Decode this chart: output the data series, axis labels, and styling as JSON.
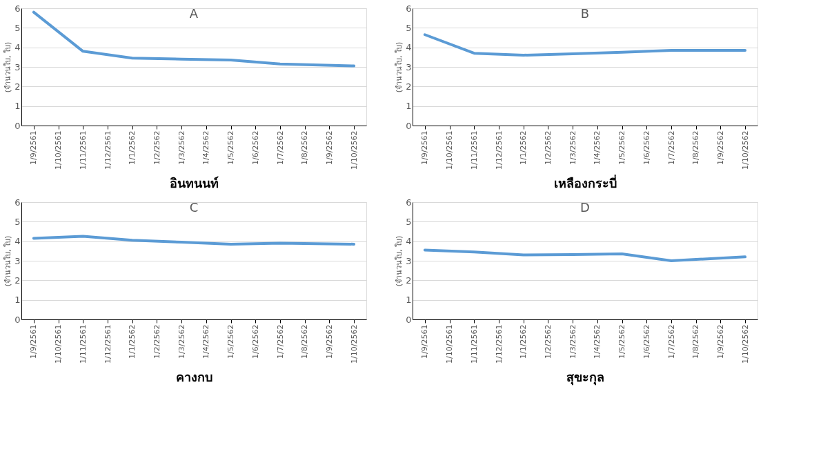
{
  "chart_data": [
    {
      "type": "line",
      "title": "A",
      "ylabel": "(จำนวนใบ, ใบ)",
      "xlabel": "อินทนนท์",
      "categories": [
        "1/9/2561",
        "1/10/2561",
        "1/11/2561",
        "1/12/2561",
        "1/1/2562",
        "1/2/2562",
        "1/3/2562",
        "1/4/2562",
        "1/5/2562",
        "1/6/2562",
        "1/7/2562",
        "1/8/2562",
        "1/9/2562",
        "1/10/2562"
      ],
      "series": [
        {
          "color": "#5b9bd5",
          "values": [
            5.8,
            null,
            3.8,
            null,
            3.45,
            null,
            3.4,
            null,
            3.35,
            null,
            3.15,
            null,
            null,
            3.05
          ]
        }
      ],
      "ylim": [
        0,
        6
      ],
      "yticks": [
        0,
        1,
        2,
        3,
        4,
        5,
        6
      ],
      "grid": "y",
      "marker": "none",
      "line_style": "solid"
    },
    {
      "type": "line",
      "title": "B",
      "ylabel": "(จำนวนใบ, ใบ)",
      "xlabel": "เหลืองกระบี่",
      "categories": [
        "1/9/2561",
        "1/10/2561",
        "1/11/2561",
        "1/12/2561",
        "1/1/2562",
        "1/2/2562",
        "1/3/2562",
        "1/4/2562",
        "1/5/2562",
        "1/6/2562",
        "1/7/2562",
        "1/8/2562",
        "1/9/2562",
        "1/10/2562"
      ],
      "series": [
        {
          "color": "#5b9bd5",
          "values": [
            4.65,
            null,
            3.7,
            null,
            3.6,
            null,
            3.67,
            null,
            3.75,
            null,
            3.85,
            null,
            null,
            3.85
          ]
        }
      ],
      "ylim": [
        0,
        6
      ],
      "yticks": [
        0,
        1,
        2,
        3,
        4,
        5,
        6
      ],
      "grid": "y",
      "marker": "none",
      "line_style": "solid"
    },
    {
      "type": "line",
      "title": "C",
      "ylabel": "(จำนวนใบ, ใบ)",
      "xlabel": "คางกบ",
      "categories": [
        "1/9/2561",
        "1/10/2561",
        "1/11/2561",
        "1/12/2561",
        "1/1/2562",
        "1/2/2562",
        "1/3/2562",
        "1/4/2562",
        "1/5/2562",
        "1/6/2562",
        "1/7/2562",
        "1/8/2562",
        "1/9/2562",
        "1/10/2562"
      ],
      "series": [
        {
          "color": "#5b9bd5",
          "values": [
            4.15,
            null,
            4.25,
            null,
            4.05,
            null,
            3.95,
            null,
            3.85,
            null,
            3.9,
            null,
            null,
            3.85
          ]
        }
      ],
      "ylim": [
        0,
        6
      ],
      "yticks": [
        0,
        1,
        2,
        3,
        4,
        5,
        6
      ],
      "grid": "y",
      "marker": "none",
      "line_style": "solid"
    },
    {
      "type": "line",
      "title": "D",
      "ylabel": "(จำนวนใบ, ใบ)",
      "xlabel": "สุขะกุล",
      "categories": [
        "1/9/2561",
        "1/10/2561",
        "1/11/2561",
        "1/12/2561",
        "1/1/2562",
        "1/2/2562",
        "1/3/2562",
        "1/4/2562",
        "1/5/2562",
        "1/6/2562",
        "1/7/2562",
        "1/8/2562",
        "1/9/2562",
        "1/10/2562"
      ],
      "series": [
        {
          "color": "#5b9bd5",
          "values": [
            3.55,
            null,
            3.45,
            null,
            3.3,
            null,
            3.32,
            null,
            3.35,
            null,
            3.0,
            null,
            null,
            3.2
          ]
        }
      ],
      "ylim": [
        0,
        6
      ],
      "yticks": [
        0,
        1,
        2,
        3,
        4,
        5,
        6
      ],
      "grid": "y",
      "marker": "none",
      "line_style": "solid"
    }
  ]
}
